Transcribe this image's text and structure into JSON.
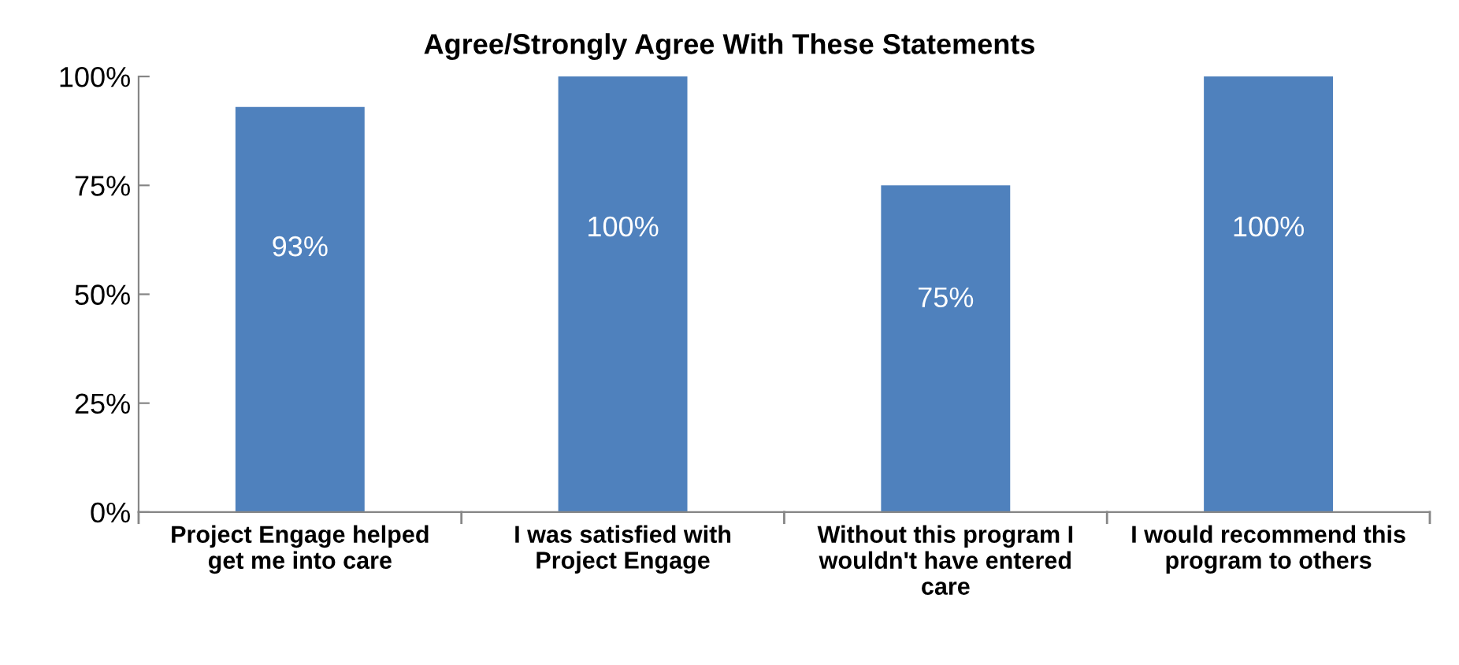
{
  "chart_data": {
    "type": "bar",
    "title": "Agree/Strongly Agree With These Statements",
    "categories": [
      "Project Engage helped\nget me into care",
      "I was satisfied with\nProject Engage",
      "Without this program I\nwouldn't have entered\ncare",
      "I would recommend this\nprogram to others"
    ],
    "values": [
      93,
      100,
      75,
      100
    ],
    "color": "#4f81bd",
    "value_labels": [
      "93%",
      "100%",
      "75%",
      "100%"
    ],
    "ylim": [
      0,
      100
    ],
    "yticks": [
      {
        "value": 0,
        "label": "0%"
      },
      {
        "value": 25,
        "label": "25%"
      },
      {
        "value": 50,
        "label": "50%"
      },
      {
        "value": 75,
        "label": "75%"
      },
      {
        "value": 100,
        "label": "100%"
      }
    ],
    "grid": false,
    "legend": false
  }
}
